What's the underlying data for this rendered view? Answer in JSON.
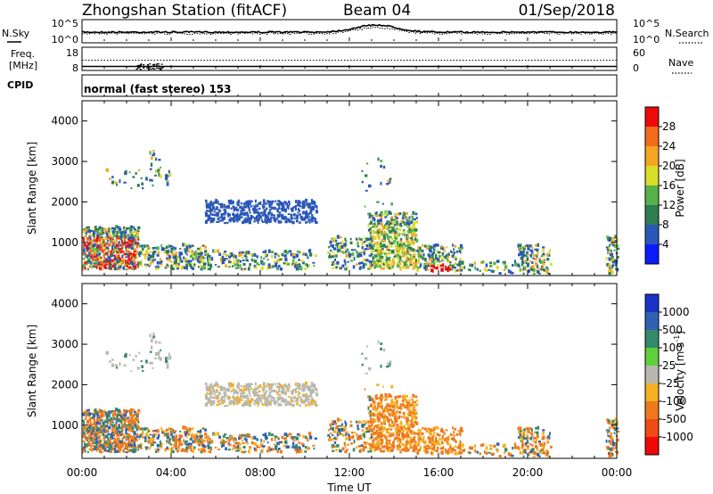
{
  "header": {
    "station": "Zhongshan Station (fitACF)",
    "beam": "Beam 04",
    "date": "01/Sep/2018"
  },
  "noise_panel": {
    "left_label": "N.Sky",
    "right_label": "N.Search",
    "left_ticks": [
      "10^5",
      "10^0"
    ],
    "right_ticks": [
      "10^5",
      "10^0"
    ]
  },
  "freq_panel": {
    "label_line1": "Freq.",
    "label_line2": "[MHz]",
    "right_label": "Nave",
    "left_ticks": [
      "18",
      "8"
    ],
    "right_ticks": [
      "60",
      "0"
    ]
  },
  "cpid": {
    "label": "CPID",
    "value": "normal (fast stereo) 153"
  },
  "chart_data": [
    {
      "type": "heatmap",
      "name": "Power",
      "ylabel": "Slant Range [km]",
      "ylim": [
        180,
        4500
      ],
      "yticks": [
        "1000",
        "2000",
        "3000",
        "4000"
      ],
      "colorbar_label": "Power [dB]",
      "colorbar_ticks": [
        "4",
        "8",
        "12",
        "16",
        "20",
        "24",
        "28"
      ],
      "colors": [
        "#0b1bff",
        "#2a57b8",
        "#2f7d52",
        "#55b349",
        "#d8dd27",
        "#f6a623",
        "#f26c1b",
        "#ee0b0b"
      ]
    },
    {
      "type": "heatmap",
      "name": "Velocity",
      "ylabel": "Slant Range [km]",
      "xlabel": "Time UT",
      "ylim": [
        180,
        4500
      ],
      "yticks": [
        "1000",
        "2000",
        "3000",
        "4000"
      ],
      "xticks": [
        "00:00",
        "04:00",
        "08:00",
        "12:00",
        "16:00",
        "20:00",
        "00:00"
      ],
      "colorbar_label": "Velocity [m s",
      "colorbar_unit_sup": "-1",
      "colorbar_unit_end": "]",
      "colorbar_ticks": [
        "1000",
        "500",
        "100",
        "25",
        "-25",
        "-100",
        "-500",
        "-1000"
      ],
      "colors": [
        "#1932c8",
        "#3161b0",
        "#348a6a",
        "#5fcf3a",
        "#b8b8b0",
        "#f4b020",
        "#ee7a1c",
        "#f04b17",
        "#ee0a0a"
      ]
    }
  ]
}
